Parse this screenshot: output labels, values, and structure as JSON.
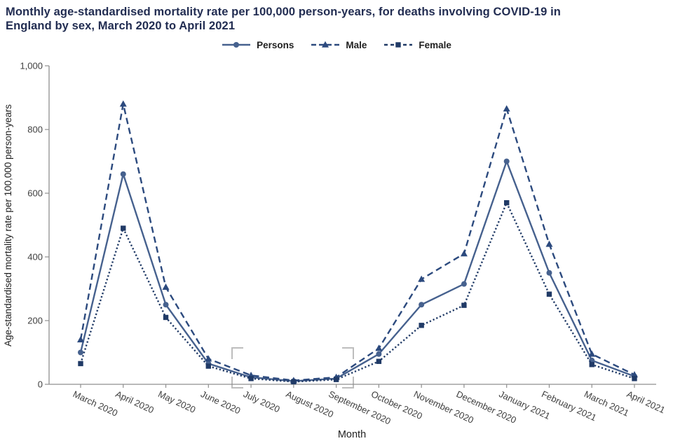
{
  "header": {
    "title_lines": [
      "Monthly age-standardised mortality rate per 100,000 person-years, for deaths involving COVID-19 in",
      "England by sex, March 2020 to April 2021"
    ]
  },
  "colors": {
    "background": "#ffffff",
    "title_text": "#222d52",
    "axis": "#8f8f8f",
    "tick_text": "#3f3f3f",
    "axis_title_text": "#222222",
    "bracket": "#bdbdbd"
  },
  "chart_data": {
    "type": "line",
    "title": "Monthly age-standardised mortality rate per 100,000 person-years, for deaths involving COVID-19 in England by sex, March 2020 to April 2021",
    "xlabel": "Month",
    "ylabel": "Age-standardised mortality rate per 100,000 person-years",
    "ylim": [
      0,
      1000
    ],
    "yticks": [
      0,
      200,
      400,
      600,
      800,
      1000
    ],
    "ytick_labels": [
      "0",
      "200",
      "400",
      "600",
      "800",
      "1,000"
    ],
    "grid": false,
    "legend_position": "top",
    "categories": [
      "March 2020",
      "April 2020",
      "May 2020",
      "June 2020",
      "July 2020",
      "August 2020",
      "September 2020",
      "October 2020",
      "November 2020",
      "December 2020",
      "January 2021",
      "February 2021",
      "March 2021",
      "April 2021"
    ],
    "series": [
      {
        "name": "Persons",
        "marker": "circle",
        "style": "solid",
        "color": "#46618e",
        "values": [
          100,
          660,
          250,
          65,
          22,
          10,
          18,
          95,
          250,
          315,
          700,
          350,
          75,
          25
        ]
      },
      {
        "name": "Male",
        "marker": "triangle",
        "style": "dashed",
        "color": "#2c4a7e",
        "values": [
          140,
          880,
          305,
          80,
          28,
          12,
          22,
          113,
          330,
          410,
          865,
          440,
          95,
          30
        ]
      },
      {
        "name": "Female",
        "marker": "square",
        "style": "dotted",
        "color": "#203a66",
        "values": [
          65,
          490,
          210,
          57,
          18,
          8,
          15,
          72,
          185,
          248,
          570,
          283,
          62,
          18
        ]
      }
    ]
  }
}
